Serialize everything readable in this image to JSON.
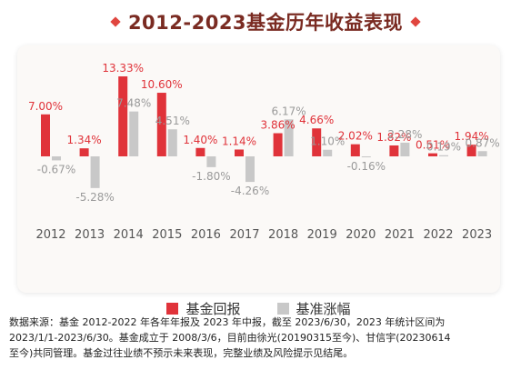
{
  "header": {
    "title": "2012-2023基金历年收益表现"
  },
  "colors": {
    "fund": "#e0333a",
    "benchmark": "#c8c8c8",
    "title": "#7a2b22"
  },
  "chart_data": {
    "type": "bar",
    "title": "2012-2023基金历年收益表现",
    "categories": [
      "2012",
      "2013",
      "2014",
      "2015",
      "2016",
      "2017",
      "2018",
      "2019",
      "2020",
      "2021",
      "2022",
      "2023"
    ],
    "series": [
      {
        "name": "基金回报",
        "values": [
          7.0,
          1.34,
          13.33,
          10.6,
          1.4,
          1.14,
          3.86,
          4.66,
          2.02,
          1.82,
          0.51,
          1.94
        ],
        "labels": [
          "7.00%",
          "1.34%",
          "13.33%",
          "10.60%",
          "1.40%",
          "1.14%",
          "3.86%",
          "4.66%",
          "2.02%",
          "1.82%",
          "0.51%",
          "1.94%"
        ]
      },
      {
        "name": "基准涨幅",
        "values": [
          -0.67,
          -5.28,
          7.48,
          4.51,
          -1.8,
          -4.26,
          6.17,
          1.1,
          -0.16,
          2.28,
          0.19,
          0.87
        ],
        "labels": [
          "-0.67%",
          "-5.28%",
          "7.48%",
          "4.51%",
          "-1.80%",
          "-4.26%",
          "6.17%",
          "1.10%",
          "-0.16%",
          "2.28%",
          "0.19%",
          "0.87%"
        ]
      }
    ],
    "ylim": [
      -6,
      14
    ],
    "grid": false,
    "legend": "bottom"
  },
  "footnote": {
    "line1": "数据来源：基金 2012-2022 年各年年报及 2023 年中报，截至 2023/6/30，2023 年统计区间为",
    "line2": "2023/1/1-2023/6/30。基金成立于 2008/3/6，目前由徐光(20190315至今)、甘信宇(20230614",
    "line3": "至今)共同管理。基金过往业绩不预示未来表现，完整业绩及风险提示见结尾。"
  }
}
